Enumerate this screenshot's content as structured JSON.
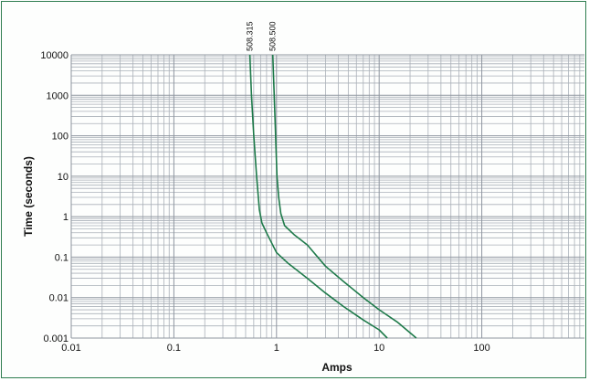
{
  "chart_data": {
    "type": "line",
    "title": "",
    "xlabel": "Amps",
    "ylabel": "Time (seconds)",
    "x_scale": "log",
    "y_scale": "log",
    "xlim": [
      0.01,
      1000
    ],
    "ylim": [
      0.001,
      10000
    ],
    "grid": true,
    "x_ticks": [
      "0.01",
      "0.1",
      "1",
      "10",
      "100"
    ],
    "y_ticks": [
      "0.001",
      "0.01",
      "0.1",
      "1",
      "10",
      "100",
      "1000",
      "10000"
    ],
    "line_color": "#1e7a4a",
    "series": [
      {
        "name": "508.315",
        "x": [
          0.55,
          0.57,
          0.6,
          0.64,
          0.68,
          0.72,
          0.8,
          0.9,
          1.0,
          1.3,
          2.0,
          3.0,
          4.5,
          7.0,
          10.0,
          12.0
        ],
        "y": [
          10000,
          1000,
          100,
          10,
          1.5,
          0.7,
          0.4,
          0.22,
          0.13,
          0.07,
          0.03,
          0.013,
          0.006,
          0.0028,
          0.0016,
          0.001
        ]
      },
      {
        "name": "508.500",
        "x": [
          0.92,
          0.95,
          0.98,
          1.01,
          1.05,
          1.1,
          1.2,
          1.5,
          2.0,
          3.0,
          4.5,
          7.0,
          10.0,
          15.0,
          23.0
        ],
        "y": [
          10000,
          1000,
          100,
          10,
          3.0,
          1.2,
          0.6,
          0.35,
          0.2,
          0.06,
          0.025,
          0.01,
          0.005,
          0.0025,
          0.001
        ]
      }
    ]
  }
}
